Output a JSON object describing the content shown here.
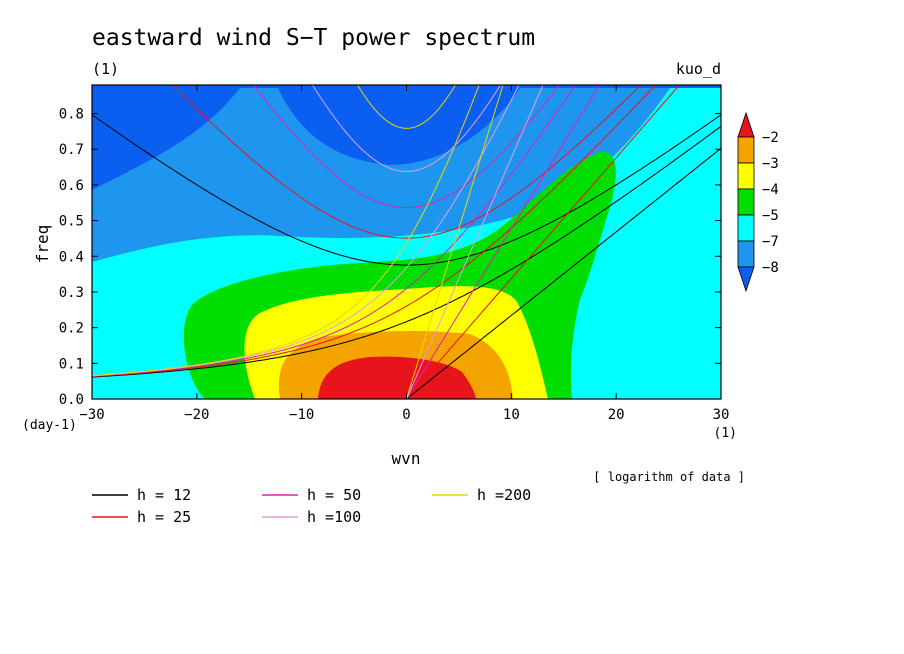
{
  "chart_data": {
    "type": "heatmap",
    "title": "eastward wind S−T power spectrum",
    "subtitle_left": "(1)",
    "subtitle_right": "kuo_d",
    "xlabel": "wvn",
    "ylabel": "freq",
    "x_unit": "(1)",
    "y_unit": "(day-1)",
    "xlim": [
      -30,
      30
    ],
    "ylim": [
      0,
      0.88
    ],
    "x_ticks": [
      "−30",
      "−20",
      "−10",
      "0",
      "10",
      "20",
      "30"
    ],
    "x_tick_values": [
      -30,
      -20,
      -10,
      0,
      10,
      20,
      30
    ],
    "y_ticks": [
      "0.0",
      "0.1",
      "0.2",
      "0.3",
      "0.4",
      "0.5",
      "0.6",
      "0.7",
      "0.8"
    ],
    "y_tick_values": [
      0,
      0.1,
      0.2,
      0.3,
      0.4,
      0.5,
      0.6,
      0.7,
      0.8
    ],
    "note": "[ logarithm of data ]",
    "colorbar": {
      "labels": [
        "−2",
        "−3",
        "−4",
        "−5",
        "−7",
        "−8"
      ],
      "colors": [
        "#e8141c",
        "#f5a300",
        "#ffff00",
        "#00dd00",
        "#00ffff",
        "#1e96f0",
        "#0a5ff0"
      ]
    },
    "fill_levels": [
      {
        "level": "<-8",
        "color": "#0a5ff0"
      },
      {
        "level": "-8 to -7",
        "color": "#1e96f0"
      },
      {
        "level": "-7 to -5",
        "color": "#00ffff"
      },
      {
        "level": "-5 to -4",
        "color": "#00dd00"
      },
      {
        "level": "-4 to -3",
        "color": "#ffff00"
      },
      {
        "level": "-3 to -2",
        "color": "#f5a300"
      },
      {
        "level": ">-2",
        "color": "#e8141c"
      }
    ],
    "dispersion_curves": [
      {
        "name": "h = 12",
        "h": 12,
        "color": "#000000"
      },
      {
        "name": "h = 25",
        "h": 25,
        "color": "#e8141c"
      },
      {
        "name": "h = 50",
        "h": 50,
        "color": "#e020b0"
      },
      {
        "name": "h =100",
        "h": 100,
        "color": "#e0a0e0"
      },
      {
        "name": "h =200",
        "h": 200,
        "color": "#e6d800"
      }
    ],
    "grid": false
  }
}
